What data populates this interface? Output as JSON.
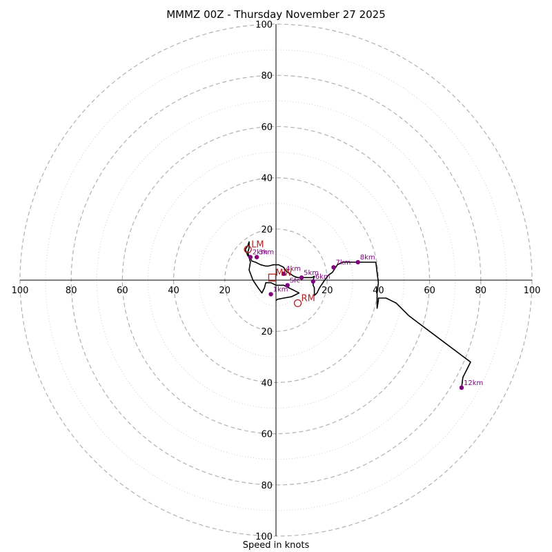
{
  "title": "MMMZ 00Z - Thursday November 27 2025",
  "chart_data": {
    "type": "hodograph",
    "title": "MMMZ 00Z - Thursday November 27 2025",
    "xlabel": "Speed in knots",
    "ylabel": "",
    "range": [
      -100,
      100
    ],
    "major_rings": [
      20,
      40,
      60,
      80,
      100
    ],
    "minor_rings": [
      10,
      30,
      50,
      70,
      90
    ],
    "tick_labels": [
      "100",
      "80",
      "60",
      "40",
      "20",
      "20",
      "40",
      "60",
      "80",
      "100"
    ],
    "ytick_labels": [
      "100",
      "80",
      "60",
      "40",
      "20",
      "20",
      "40",
      "60",
      "80",
      "100"
    ],
    "trace": [
      [
        0,
        -8
      ],
      [
        0.5,
        -7.5
      ],
      [
        3,
        -7
      ],
      [
        6,
        -6.5
      ],
      [
        9,
        -5
      ],
      [
        7,
        -4
      ],
      [
        5,
        -3
      ],
      [
        3,
        -2
      ],
      [
        0,
        -2
      ],
      [
        -2,
        -1
      ],
      [
        -4,
        -1
      ],
      [
        -4.5,
        -3
      ],
      [
        -5.5,
        -5
      ],
      [
        -7,
        -3
      ],
      [
        -9,
        0
      ],
      [
        -10.5,
        4
      ],
      [
        -10,
        7
      ],
      [
        -10.5,
        9
      ],
      [
        -11,
        11
      ],
      [
        -10.5,
        12.5
      ],
      [
        -10.5,
        15
      ],
      [
        -11,
        13.5
      ],
      [
        -12,
        12
      ],
      [
        -11,
        9.5
      ],
      [
        -10,
        9
      ],
      [
        -9.5,
        7.5
      ],
      [
        -8,
        7
      ],
      [
        -6,
        6
      ],
      [
        -4,
        5.5
      ],
      [
        -3,
        5.5
      ],
      [
        -1,
        6
      ],
      [
        1,
        6
      ],
      [
        3,
        5
      ],
      [
        4,
        3.5
      ],
      [
        5.5,
        2.5
      ],
      [
        7,
        1.5
      ],
      [
        8.5,
        1
      ],
      [
        10,
        1
      ],
      [
        12,
        1
      ],
      [
        14,
        1
      ],
      [
        15,
        1.5
      ],
      [
        14.5,
        0
      ],
      [
        14.5,
        -2
      ],
      [
        15,
        -3
      ],
      [
        15,
        -4
      ],
      [
        15,
        -5
      ],
      [
        15,
        -6
      ],
      [
        16,
        -5
      ],
      [
        17,
        -3
      ],
      [
        18,
        -1.5
      ],
      [
        19,
        0
      ],
      [
        20.5,
        2
      ],
      [
        22,
        3
      ],
      [
        23,
        4.5
      ],
      [
        24,
        6
      ],
      [
        26,
        7
      ],
      [
        30,
        7
      ],
      [
        35,
        7
      ],
      [
        39,
        7
      ],
      [
        39.5,
        3
      ],
      [
        40,
        -1
      ],
      [
        39.5,
        -5
      ],
      [
        39.5,
        -8
      ],
      [
        39.5,
        -11
      ],
      [
        40,
        -8
      ],
      [
        40,
        -7
      ],
      [
        41,
        -7
      ],
      [
        43,
        -7
      ],
      [
        45,
        -8
      ],
      [
        47,
        -9
      ],
      [
        49,
        -11
      ],
      [
        52,
        -14
      ],
      [
        56,
        -17
      ],
      [
        60,
        -20
      ],
      [
        64,
        -23
      ],
      [
        68,
        -26
      ],
      [
        72,
        -29
      ],
      [
        76,
        -32
      ],
      [
        75,
        -34
      ],
      [
        74,
        -36
      ],
      [
        73,
        -38
      ],
      [
        72.5,
        -42
      ]
    ],
    "height_markers": [
      {
        "label": "Sfc",
        "u": 4.5,
        "v": -2
      },
      {
        "label": "1km",
        "u": -2,
        "v": -5.5
      },
      {
        "label": "2km",
        "u": -10,
        "v": 9
      },
      {
        "label": "3km",
        "u": -7.5,
        "v": 9
      },
      {
        "label": "4km",
        "u": 3,
        "v": 2.5
      },
      {
        "label": "5km",
        "u": 10,
        "v": 1
      },
      {
        "label": "6km",
        "u": 14.5,
        "v": -0.5
      },
      {
        "label": "7km",
        "u": 22.5,
        "v": 5
      },
      {
        "label": "8km",
        "u": 32,
        "v": 7
      },
      {
        "label": "12km",
        "u": 72.5,
        "v": -42
      }
    ],
    "storm_motion": [
      {
        "label": "LM",
        "u": -11,
        "v": 12,
        "shape": "circle"
      },
      {
        "label": "MW",
        "u": -1.5,
        "v": 1,
        "shape": "square"
      },
      {
        "label": "RM",
        "u": 8.5,
        "v": -9,
        "shape": "circle"
      }
    ]
  },
  "colors": {
    "trace": "#000000",
    "height_marker": "#800080",
    "storm_motion": "#b22222",
    "ring": "#b0b0b0",
    "axis": "#000000"
  }
}
